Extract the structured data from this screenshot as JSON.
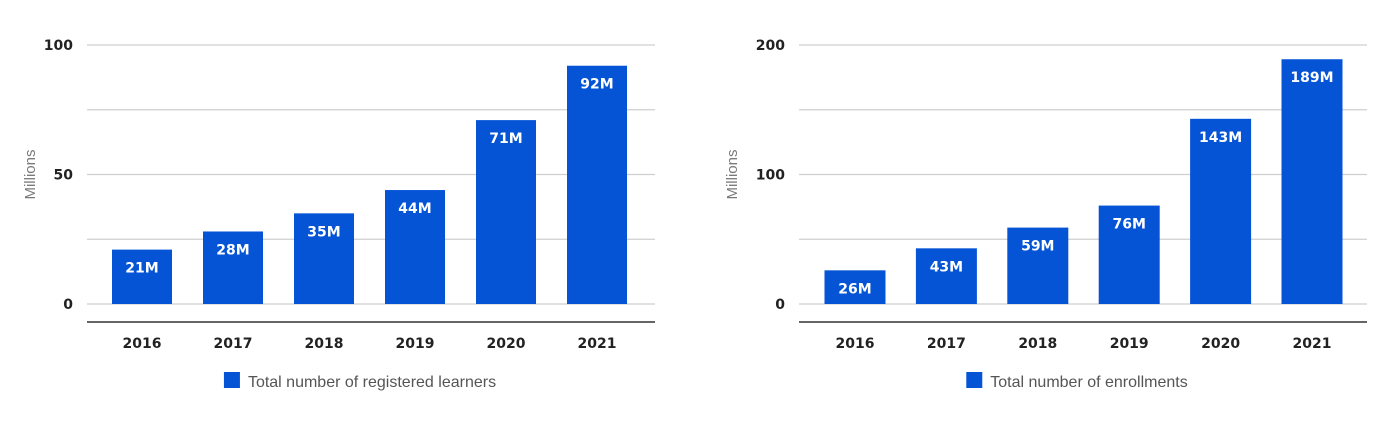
{
  "chart_data": [
    {
      "type": "bar",
      "categories": [
        "2016",
        "2017",
        "2018",
        "2019",
        "2020",
        "2021"
      ],
      "series": [
        {
          "name": "Total number of registered learners",
          "values": [
            21,
            28,
            35,
            44,
            71,
            92
          ],
          "labels": [
            "21M",
            "28M",
            "35M",
            "44M",
            "71M",
            "92M"
          ]
        }
      ],
      "ylabel": "Millions",
      "ylim": [
        0,
        100
      ],
      "yticks": [
        0,
        50,
        100
      ],
      "gridlines": [
        0,
        25,
        50,
        75,
        100
      ],
      "grid": true,
      "legend_position": "bottom-center",
      "color": "#0654d6"
    },
    {
      "type": "bar",
      "categories": [
        "2016",
        "2017",
        "2018",
        "2019",
        "2020",
        "2021"
      ],
      "series": [
        {
          "name": "Total number of enrollments",
          "values": [
            26,
            43,
            59,
            76,
            143,
            189
          ],
          "labels": [
            "26M",
            "43M",
            "59M",
            "76M",
            "143M",
            "189M"
          ]
        }
      ],
      "ylabel": "Millions",
      "ylim": [
        0,
        200
      ],
      "yticks": [
        0,
        100,
        200
      ],
      "gridlines": [
        0,
        50,
        100,
        150,
        200
      ],
      "grid": true,
      "legend_position": "bottom-center",
      "color": "#0654d6"
    }
  ]
}
